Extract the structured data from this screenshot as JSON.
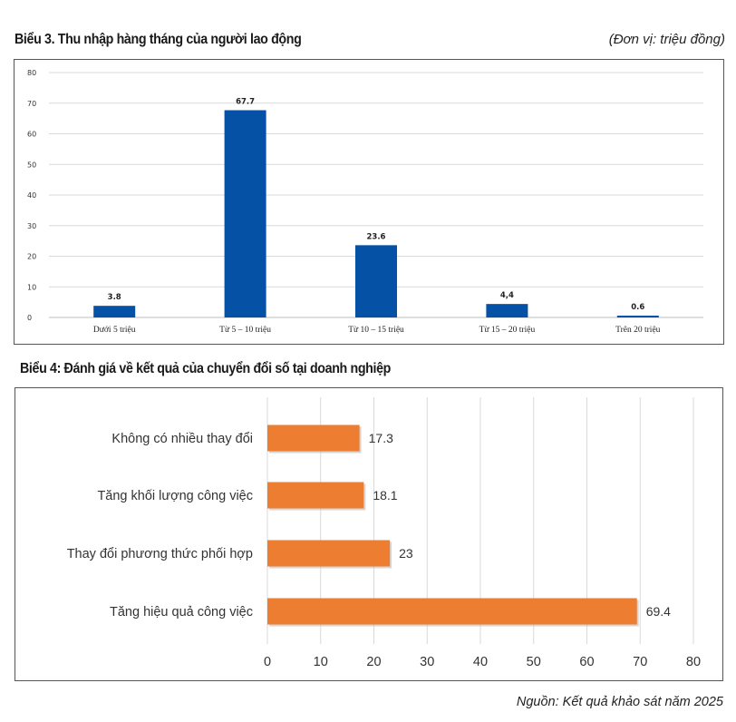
{
  "header": {
    "chart3_title": "Biểu 3. Thu nhập hàng tháng của người lao động",
    "chart3_unit": "(Đơn vị: triệu đồng)",
    "chart4_title": "Biểu 4: Đánh giá về kết quả của chuyển đổi số tại doanh nghiệp"
  },
  "footer": {
    "source": "Nguồn: Kết quả khảo sát năm 2025"
  },
  "colors": {
    "bar3": "#0451a5",
    "bar4": "#ed7d31",
    "grid": "#d9d9d9"
  },
  "chart_data": [
    {
      "type": "bar",
      "title": "Biểu 3. Thu nhập hàng tháng của người lao động",
      "ylabel": "Đơn vị: triệu đồng",
      "categories": [
        "Dưới 5 triệu",
        "Từ 5 – 10 triệu",
        "Từ 10 – 15 triệu",
        "Từ 15 – 20 triệu",
        "Trên 20 triệu"
      ],
      "values": [
        3.8,
        67.7,
        23.6,
        4.4,
        0.6
      ],
      "value_labels": [
        "3.8",
        "67.7",
        "23.6",
        "4,4",
        "0.6"
      ],
      "ylim": [
        0,
        80
      ],
      "yticks": [
        0,
        10,
        20,
        30,
        40,
        50,
        60,
        70,
        80
      ],
      "grid": true
    },
    {
      "type": "bar",
      "orientation": "horizontal",
      "title": "Biểu 4: Đánh giá về kết quả của chuyển đổi số tại doanh nghiệp",
      "categories": [
        "Không có nhiều thay đổi",
        "Tăng khối lượng công việc",
        "Thay đổi phương thức phối hợp",
        "Tăng hiệu quả công việc"
      ],
      "values": [
        17.3,
        18.1,
        23,
        69.4
      ],
      "value_labels": [
        "17.3",
        "18.1",
        "23",
        "69.4"
      ],
      "xlim": [
        0,
        80
      ],
      "xticks": [
        0,
        10,
        20,
        30,
        40,
        50,
        60,
        70,
        80
      ],
      "grid": true
    }
  ]
}
